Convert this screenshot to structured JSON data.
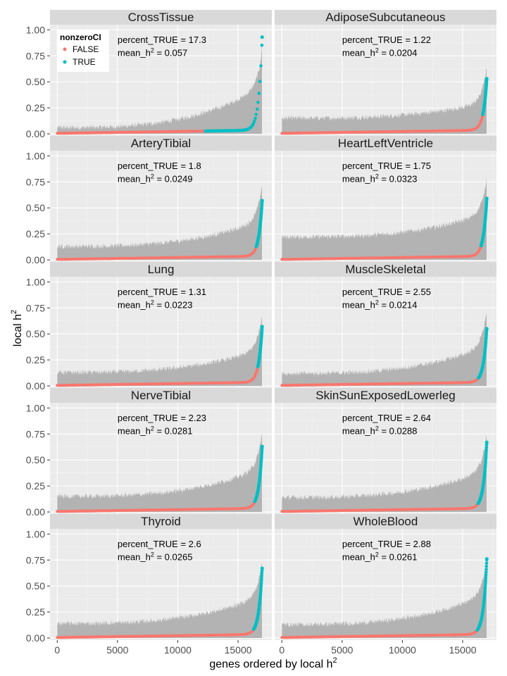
{
  "chart_data": {
    "type": "scatter",
    "xlabel": "genes ordered by local h",
    "xlabel_sup": "2",
    "ylabel": "local h",
    "ylabel_sup": "2",
    "x_ticks": [
      0,
      5000,
      10000,
      15000
    ],
    "y_ticks": [
      "0.00",
      "0.25",
      "0.50",
      "0.75",
      "1.00"
    ],
    "xlim": [
      -600,
      17800
    ],
    "ylim": [
      -0.02,
      1.05
    ],
    "n_genes": 17000,
    "grid": true,
    "legend": {
      "title": "nonzeroCI",
      "position": "top-left",
      "entries": [
        {
          "label": "FALSE",
          "color": "#F8766D"
        },
        {
          "label": "TRUE",
          "color": "#00BFC4"
        }
      ]
    },
    "annot_prefix_percent": "percent_TRUE = ",
    "annot_prefix_mean": "mean_h",
    "annot_mean_sup": "2",
    "annot_mean_eq": " = ",
    "panels": [
      {
        "name": "CrossTissue",
        "percent_TRUE": "17.3",
        "mean_h2": "0.057",
        "max_h2": 0.93,
        "ci_base": 0.06,
        "ci_end": 0.45
      },
      {
        "name": "AdiposeSubcutaneous",
        "percent_TRUE": "1.22",
        "mean_h2": "0.0204",
        "max_h2": 0.53,
        "ci_base": 0.15,
        "ci_end": 0.3
      },
      {
        "name": "ArteryTibial",
        "percent_TRUE": "1.8",
        "mean_h2": "0.0249",
        "max_h2": 0.57,
        "ci_base": 0.13,
        "ci_end": 0.38
      },
      {
        "name": "HeartLeftVentricle",
        "percent_TRUE": "1.75",
        "mean_h2": "0.0323",
        "max_h2": 0.59,
        "ci_base": 0.22,
        "ci_end": 0.45
      },
      {
        "name": "Lung",
        "percent_TRUE": "1.31",
        "mean_h2": "0.0223",
        "max_h2": 0.57,
        "ci_base": 0.13,
        "ci_end": 0.35
      },
      {
        "name": "MuscleSkeletal",
        "percent_TRUE": "2.55",
        "mean_h2": "0.0214",
        "max_h2": 0.55,
        "ci_base": 0.12,
        "ci_end": 0.38
      },
      {
        "name": "NerveTibial",
        "percent_TRUE": "2.23",
        "mean_h2": "0.0281",
        "max_h2": 0.63,
        "ci_base": 0.15,
        "ci_end": 0.42
      },
      {
        "name": "SkinSunExposedLowerleg",
        "percent_TRUE": "2.64",
        "mean_h2": "0.0288",
        "max_h2": 0.67,
        "ci_base": 0.14,
        "ci_end": 0.4
      },
      {
        "name": "Thyroid",
        "percent_TRUE": "2.6",
        "mean_h2": "0.0265",
        "max_h2": 0.67,
        "ci_base": 0.14,
        "ci_end": 0.4
      },
      {
        "name": "WholeBlood",
        "percent_TRUE": "2.88",
        "mean_h2": "0.0261",
        "max_h2": 0.76,
        "ci_base": 0.13,
        "ci_end": 0.42
      }
    ]
  }
}
